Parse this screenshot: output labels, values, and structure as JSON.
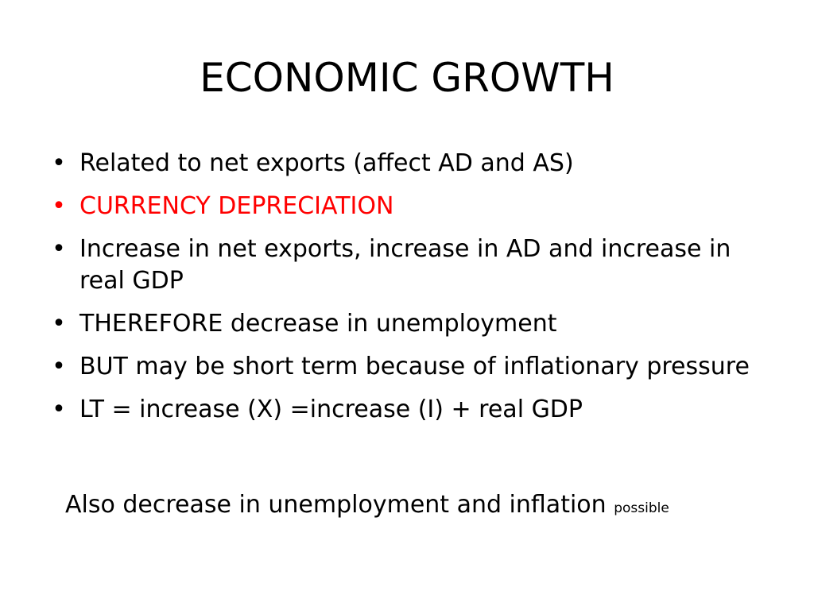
{
  "slide": {
    "title": "ECONOMIC GROWTH",
    "bullet_glyph": "•",
    "bullets": [
      {
        "text": "Related to net exports (affect AD and AS)"
      },
      {
        "text": "CURRENCY DEPRECIATION",
        "color": "#ff0000"
      },
      {
        "text": "Increase in net exports, increase in AD and increase in  real GDP"
      },
      {
        "text": "THEREFORE  decrease in unemployment"
      },
      {
        "text": "BUT may be short term because of inflationary pressure"
      },
      {
        "text": "LT = increase (X) =increase (I) + real GDP"
      }
    ],
    "note": {
      "main": "Also decrease in unemployment and inflation ",
      "small": "possible"
    }
  }
}
